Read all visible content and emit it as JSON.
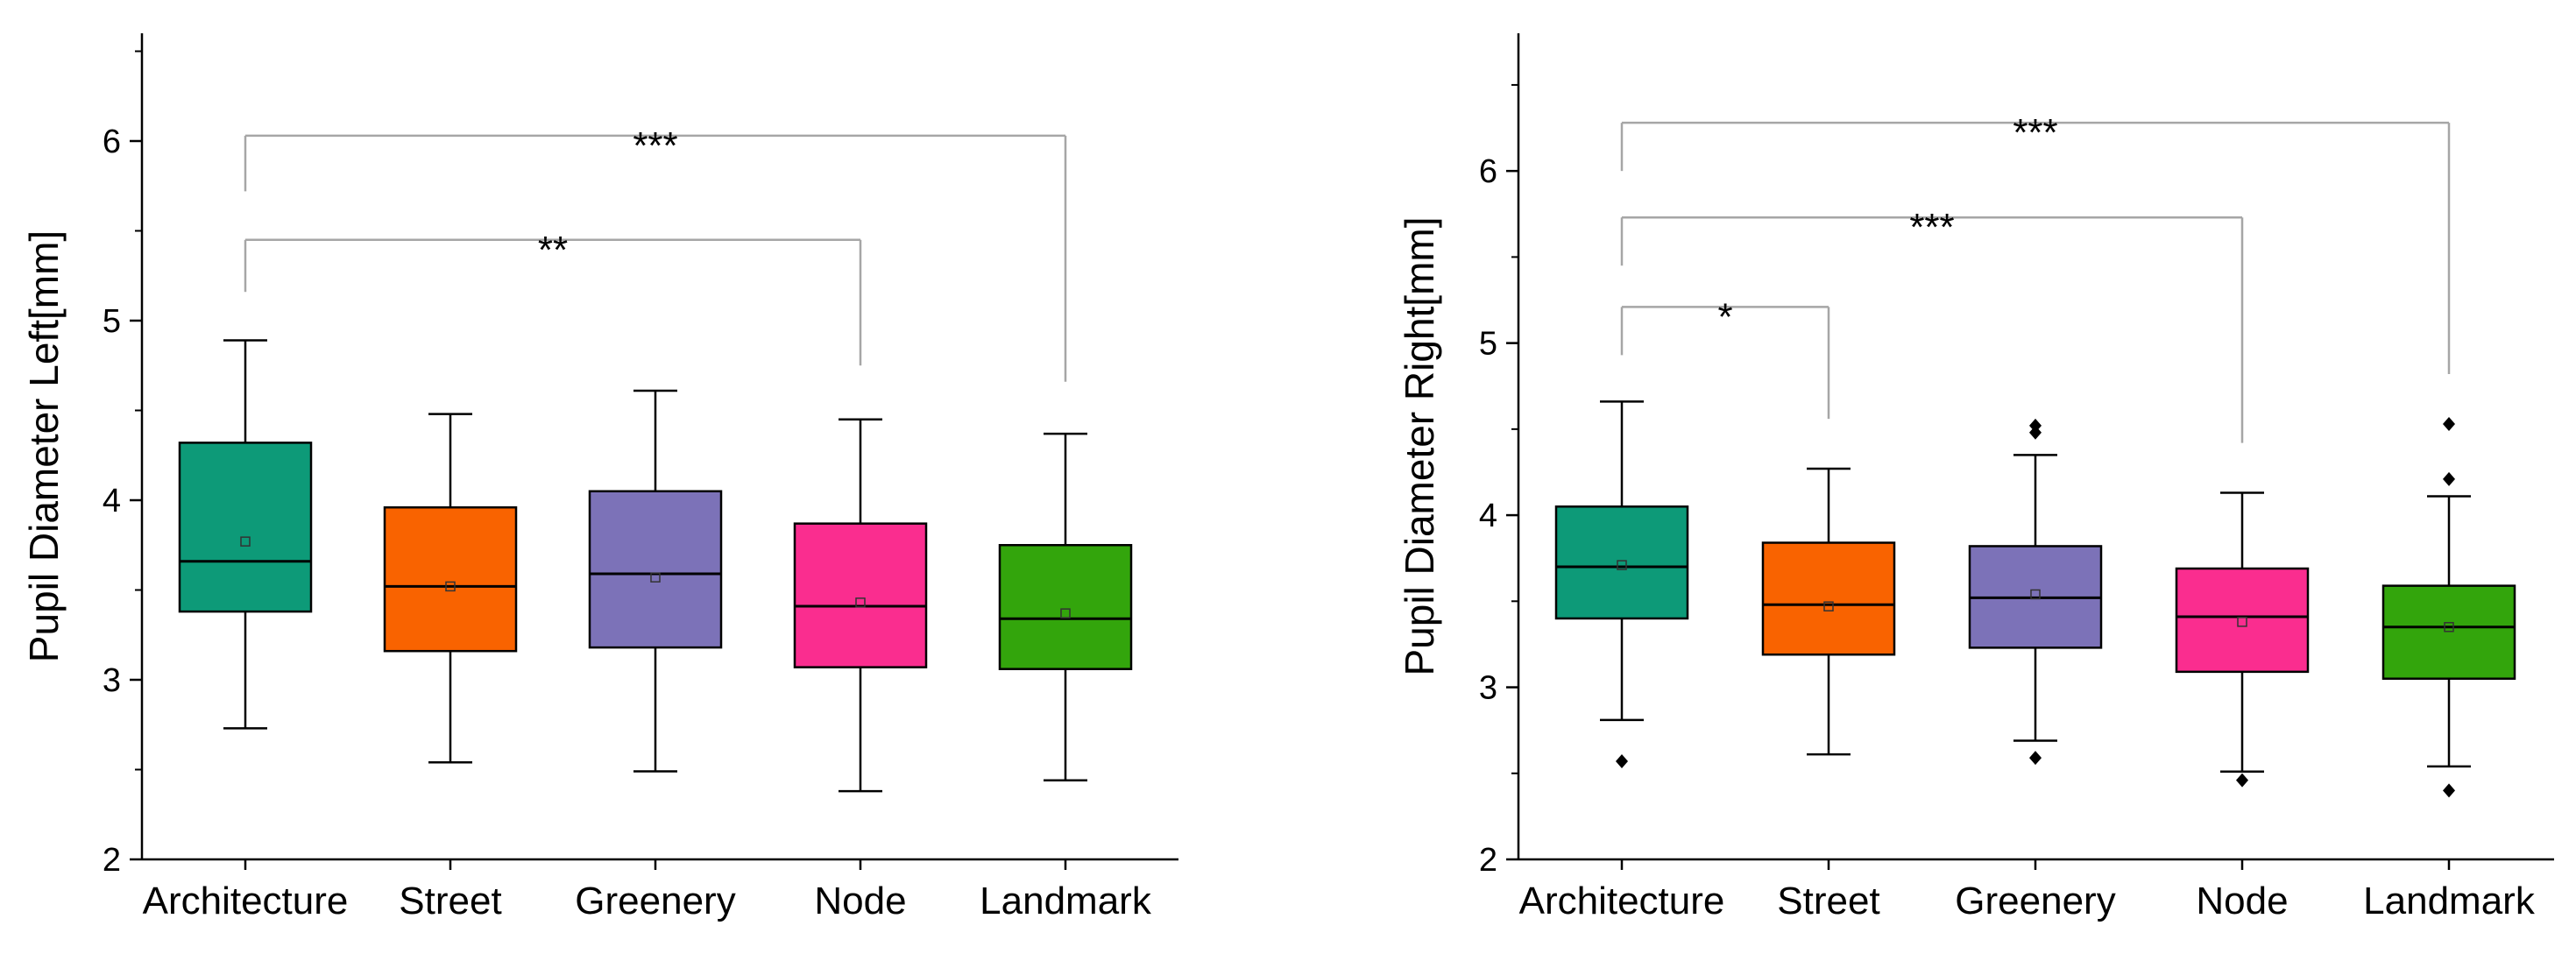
{
  "chart_data": [
    {
      "type": "box",
      "ylabel": "Pupil Diameter Left[mm]",
      "xlabel": "",
      "ylim": [
        2,
        6.6
      ],
      "yticks": [
        2,
        3,
        4,
        5,
        6
      ],
      "categories": [
        "Architecture",
        "Street",
        "Greenery",
        "Node",
        "Landmark"
      ],
      "boxes": [
        {
          "category": "Architecture",
          "min": 2.73,
          "q1": 3.38,
          "median": 3.66,
          "q3": 4.32,
          "max": 4.89,
          "mean": 3.77,
          "outliers": [],
          "color": "#0d9a78"
        },
        {
          "category": "Street",
          "min": 2.54,
          "q1": 3.16,
          "median": 3.52,
          "q3": 3.96,
          "max": 4.48,
          "mean": 3.52,
          "outliers": [],
          "color": "#f96300"
        },
        {
          "category": "Greenery",
          "min": 2.49,
          "q1": 3.18,
          "median": 3.59,
          "q3": 4.05,
          "max": 4.61,
          "mean": 3.57,
          "outliers": [],
          "color": "#7c72b8"
        },
        {
          "category": "Node",
          "min": 2.38,
          "q1": 3.07,
          "median": 3.41,
          "q3": 3.87,
          "max": 4.45,
          "mean": 3.43,
          "outliers": [],
          "color": "#fa2d8f"
        },
        {
          "category": "Landmark",
          "min": 2.44,
          "q1": 3.06,
          "median": 3.34,
          "q3": 3.75,
          "max": 4.37,
          "mean": 3.37,
          "outliers": [],
          "color": "#33a50c"
        }
      ],
      "significance": [
        {
          "from": "Architecture",
          "to": "Landmark",
          "label": "***",
          "y": 6.03,
          "leg_from": 5.72,
          "leg_to": 4.66
        },
        {
          "from": "Architecture",
          "to": "Node",
          "label": "**",
          "y": 5.45,
          "leg_from": 5.16,
          "leg_to": 4.75
        }
      ]
    },
    {
      "type": "box",
      "ylabel": "Pupil Diameter Right[mm]",
      "xlabel": "",
      "ylim": [
        2,
        6.8
      ],
      "yticks": [
        2,
        3,
        4,
        5,
        6
      ],
      "categories": [
        "Architecture",
        "Street",
        "Greenery",
        "Node",
        "Landmark"
      ],
      "boxes": [
        {
          "category": "Architecture",
          "min": 2.81,
          "q1": 3.4,
          "median": 3.7,
          "q3": 4.05,
          "max": 4.66,
          "mean": 3.71,
          "outliers": [
            2.57
          ],
          "color": "#0d9a78"
        },
        {
          "category": "Street",
          "min": 2.61,
          "q1": 3.19,
          "median": 3.48,
          "q3": 3.84,
          "max": 4.27,
          "mean": 3.47,
          "outliers": [],
          "color": "#f96300"
        },
        {
          "category": "Greenery",
          "min": 2.69,
          "q1": 3.23,
          "median": 3.52,
          "q3": 3.82,
          "max": 4.35,
          "mean": 3.54,
          "outliers": [
            4.48,
            4.52,
            2.59
          ],
          "color": "#7c72b8"
        },
        {
          "category": "Node",
          "min": 2.51,
          "q1": 3.09,
          "median": 3.41,
          "q3": 3.69,
          "max": 4.13,
          "mean": 3.38,
          "outliers": [
            2.46
          ],
          "color": "#fa2d8f"
        },
        {
          "category": "Landmark",
          "min": 2.54,
          "q1": 3.05,
          "median": 3.35,
          "q3": 3.59,
          "max": 4.11,
          "mean": 3.35,
          "outliers": [
            4.53,
            4.21,
            2.4
          ],
          "color": "#33a50c"
        }
      ],
      "significance": [
        {
          "from": "Architecture",
          "to": "Landmark",
          "label": "***",
          "y": 6.28,
          "leg_from": 6.0,
          "leg_to": 4.82
        },
        {
          "from": "Architecture",
          "to": "Node",
          "label": "***",
          "y": 5.73,
          "leg_from": 5.45,
          "leg_to": 4.42
        },
        {
          "from": "Architecture",
          "to": "Street",
          "label": "*",
          "y": 5.21,
          "leg_from": 4.93,
          "leg_to": 4.56
        }
      ]
    }
  ]
}
